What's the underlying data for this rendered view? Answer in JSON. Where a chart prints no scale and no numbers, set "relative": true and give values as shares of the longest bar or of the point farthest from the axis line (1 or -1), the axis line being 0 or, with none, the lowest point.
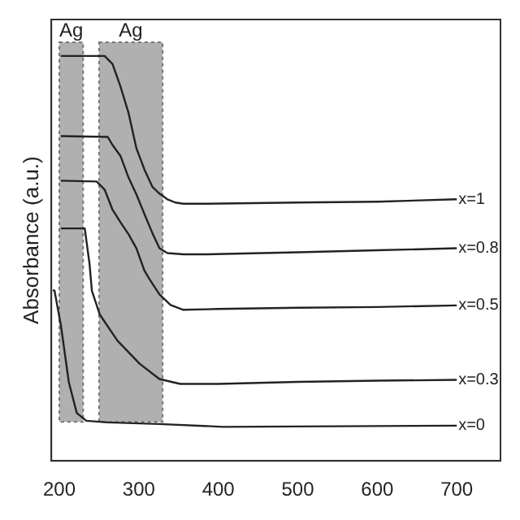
{
  "chart_data": {
    "type": "line",
    "ylabel": "Absorbance (a.u.)",
    "relative": true,
    "xlim": [
      190,
      755
    ],
    "xticks": [
      200,
      300,
      400,
      500,
      600,
      700
    ],
    "grid": false,
    "legend": false,
    "marker": "none",
    "line_style": "solid",
    "bands": [
      {
        "axis": "x",
        "from": 200,
        "to": 230,
        "label": "Ag",
        "color": "#b0b0b0"
      },
      {
        "axis": "x",
        "from": 250,
        "to": 330,
        "label": "Ag",
        "color": "#b0b0b0"
      }
    ],
    "series": [
      {
        "name": "x=1",
        "color": "#222222",
        "x": [
          202,
          257,
          267,
          277,
          287,
          297,
          307,
          317,
          326,
          336,
          346,
          356,
          386,
          500,
          600,
          700
        ],
        "values": [
          1.0,
          1.0,
          0.98,
          0.924,
          0.86,
          0.772,
          0.72,
          0.677,
          0.66,
          0.646,
          0.638,
          0.635,
          0.635,
          0.638,
          0.64,
          0.646
        ]
      },
      {
        "name": "x=0.8",
        "color": "#222222",
        "x": [
          202,
          261,
          267,
          277,
          287,
          297,
          307,
          317,
          326,
          336,
          356,
          386,
          500,
          600,
          700
        ],
        "values": [
          0.802,
          0.8,
          0.78,
          0.753,
          0.7,
          0.658,
          0.61,
          0.563,
          0.525,
          0.513,
          0.51,
          0.51,
          0.515,
          0.52,
          0.525
        ]
      },
      {
        "name": "x=0.5",
        "color": "#222222",
        "x": [
          202,
          247,
          257,
          267,
          277,
          287,
          297,
          307,
          313,
          326,
          340,
          356,
          400,
          500,
          600,
          700
        ],
        "values": [
          0.692,
          0.69,
          0.67,
          0.62,
          0.589,
          0.56,
          0.525,
          0.47,
          0.45,
          0.411,
          0.385,
          0.373,
          0.375,
          0.378,
          0.38,
          0.384
        ]
      },
      {
        "name": "x=0.3",
        "color": "#222222",
        "x": [
          202,
          232,
          238,
          241,
          251,
          273,
          301,
          326,
          352,
          400,
          500,
          600,
          700
        ],
        "values": [
          0.574,
          0.574,
          0.487,
          0.42,
          0.361,
          0.297,
          0.24,
          0.202,
          0.19,
          0.19,
          0.195,
          0.198,
          0.2
        ]
      },
      {
        "name": "x=0",
        "color": "#222222",
        "x": [
          192,
          194,
          202,
          212,
          222,
          234,
          261,
          326,
          406,
          500,
          600,
          700
        ],
        "values": [
          0.422,
          0.42,
          0.335,
          0.194,
          0.118,
          0.099,
          0.095,
          0.091,
          0.084,
          0.085,
          0.086,
          0.087
        ]
      }
    ]
  }
}
